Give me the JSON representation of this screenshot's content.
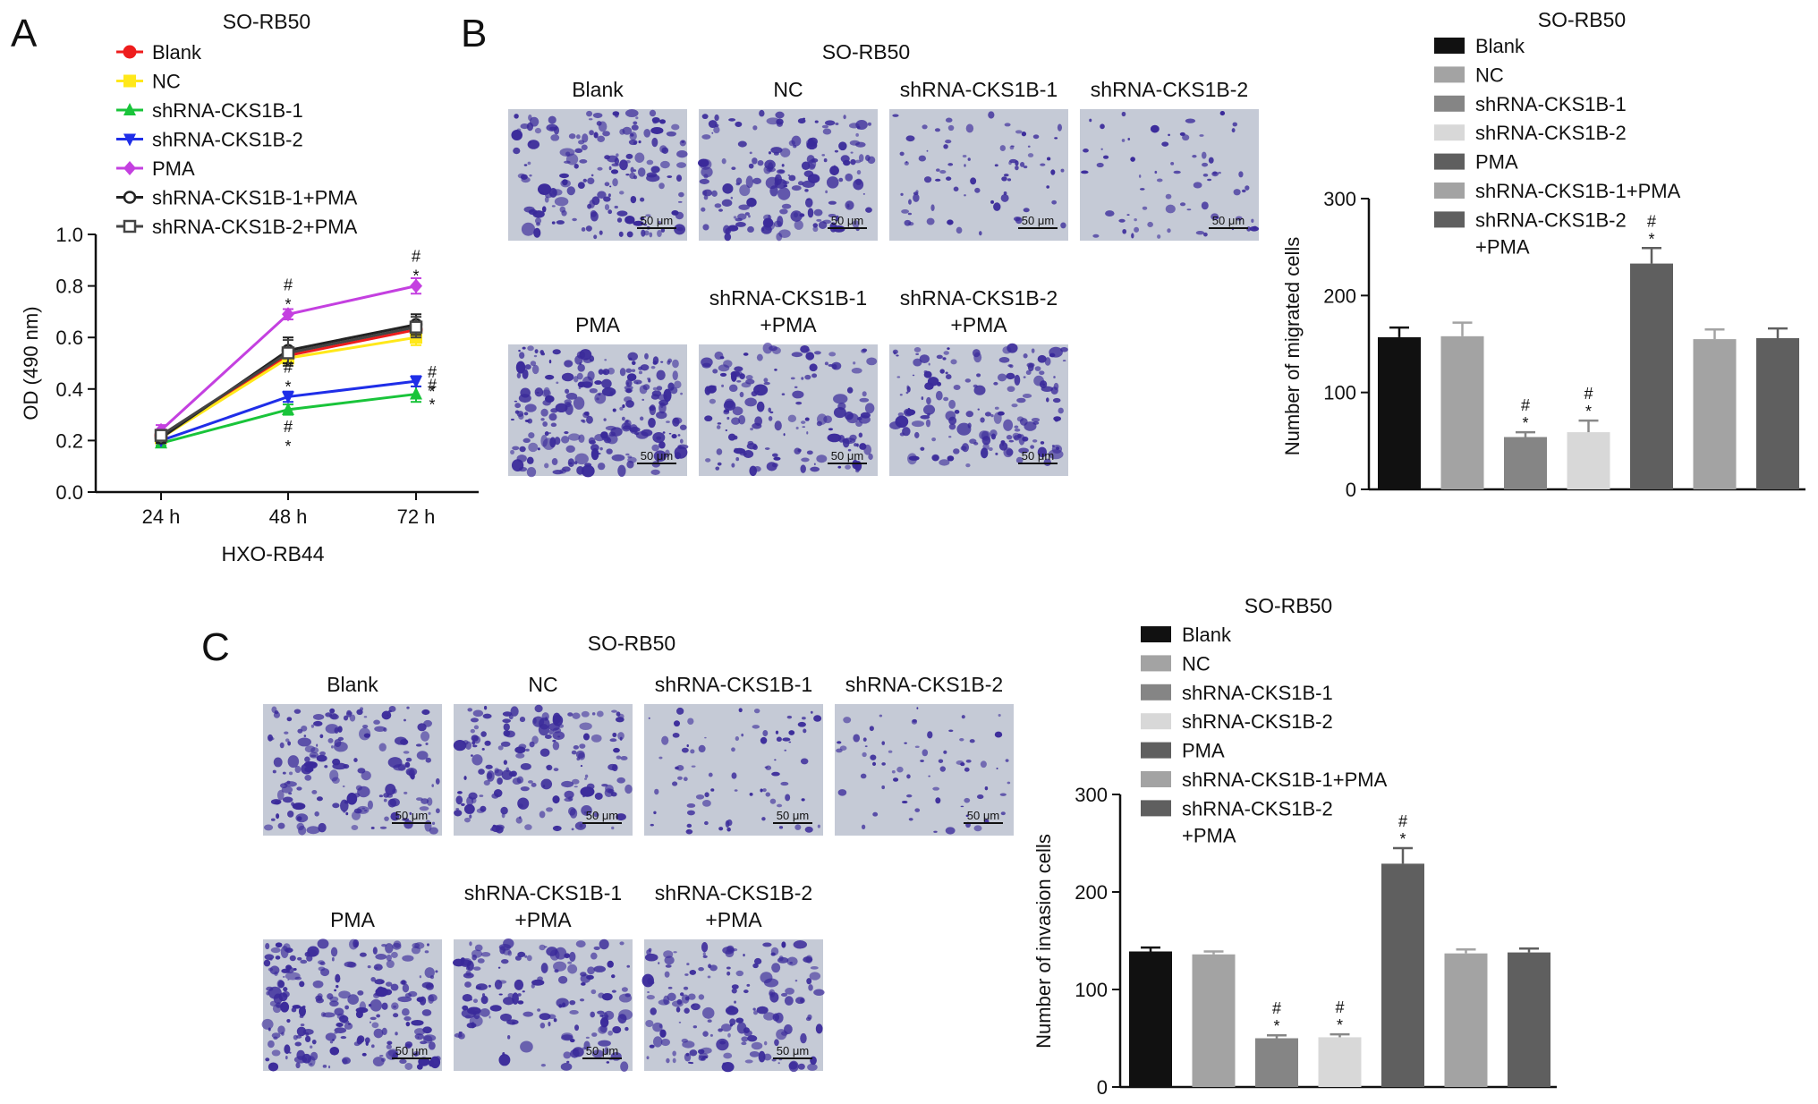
{
  "panels": {
    "A": {
      "letter": "A",
      "cell_line_top": "SO-RB50",
      "cell_line_bottom": "HXO-RB44"
    },
    "B": {
      "letter": "B",
      "images_title": "SO-RB50",
      "image_labels": [
        [
          "Blank"
        ],
        [
          "NC"
        ],
        [
          "shRNA-CKS1B-1"
        ],
        [
          "shRNA-CKS1B-2"
        ],
        [
          "PMA"
        ],
        [
          "shRNA-CKS1B-1",
          "+PMA"
        ],
        [
          "shRNA-CKS1B-2",
          "+PMA"
        ]
      ],
      "scale_bar": "50 μm"
    },
    "C": {
      "letter": "C",
      "images_title": "SO-RB50",
      "image_labels": [
        [
          "Blank"
        ],
        [
          "NC"
        ],
        [
          "shRNA-CKS1B-1"
        ],
        [
          "shRNA-CKS1B-2"
        ],
        [
          "PMA"
        ],
        [
          "shRNA-CKS1B-1",
          "+PMA"
        ],
        [
          "shRNA-CKS1B-2",
          "+PMA"
        ]
      ],
      "scale_bar": "50 μm"
    }
  },
  "colors": {
    "line": [
      "#ee1c1c",
      "#ffe81a",
      "#19c43a",
      "#1f2ee8",
      "#c440e0",
      "#222222",
      "#444444"
    ],
    "bar": [
      "#111111",
      "#a3a3a3",
      "#858585",
      "#d8d8d8",
      "#5f5f5f",
      "#a3a3a3",
      "#5f5f5f"
    ],
    "stain_bg": "#c5cad6",
    "stain_cell": "#3a2a9a"
  },
  "chart_data": [
    {
      "type": "line",
      "title": "SO-RB50",
      "xlabel": "HXO-RB44",
      "ylabel": "OD (490 nm)",
      "ylim": [
        0,
        1.0
      ],
      "yticks": [
        "0.0",
        "0.2",
        "0.4",
        "0.6",
        "0.8",
        "1.0"
      ],
      "categories": [
        "24 h",
        "48 h",
        "72 h"
      ],
      "legend": "top-left",
      "series": [
        {
          "name": "Blank",
          "marker": "circle-filled",
          "values": [
            0.22,
            0.53,
            0.63
          ],
          "errors": [
            0.02,
            0.03,
            0.03
          ]
        },
        {
          "name": "NC",
          "marker": "square-filled",
          "values": [
            0.21,
            0.52,
            0.6
          ],
          "errors": [
            0.02,
            0.03,
            0.03
          ]
        },
        {
          "name": "shRNA-CKS1B-1",
          "marker": "triangle-up",
          "values": [
            0.19,
            0.32,
            0.38
          ],
          "errors": [
            0.01,
            0.02,
            0.03
          ]
        },
        {
          "name": "shRNA-CKS1B-2",
          "marker": "triangle-down",
          "values": [
            0.2,
            0.37,
            0.43
          ],
          "errors": [
            0.01,
            0.02,
            0.02
          ]
        },
        {
          "name": "PMA",
          "marker": "diamond",
          "values": [
            0.24,
            0.69,
            0.8
          ],
          "errors": [
            0.02,
            0.02,
            0.03
          ]
        },
        {
          "name": "shRNA-CKS1B-1+PMA",
          "marker": "circle-open",
          "values": [
            0.21,
            0.55,
            0.65
          ],
          "errors": [
            0.02,
            0.05,
            0.04
          ]
        },
        {
          "name": "shRNA-CKS1B-2+PMA",
          "marker": "square-open",
          "values": [
            0.22,
            0.54,
            0.64
          ],
          "errors": [
            0.02,
            0.05,
            0.04
          ]
        }
      ],
      "annotations": [
        {
          "category": "48 h",
          "y": 0.69,
          "text": [
            "#",
            "*"
          ]
        },
        {
          "category": "48 h",
          "y": 0.37,
          "text": [
            "#",
            "*"
          ]
        },
        {
          "category": "48 h",
          "y": 0.32,
          "text": [
            "#",
            "*"
          ],
          "side": "below"
        },
        {
          "category": "72 h",
          "y": 0.8,
          "text": [
            "#",
            "*"
          ]
        },
        {
          "category": "72 h",
          "y": 0.43,
          "text": [
            "#",
            "*"
          ],
          "side": "right"
        },
        {
          "category": "72 h",
          "y": 0.38,
          "text": [
            "#",
            "*"
          ],
          "side": "right"
        }
      ]
    },
    {
      "type": "bar",
      "title": "SO-RB50",
      "ylabel": "Number of migrated cells",
      "ylim": [
        0,
        300
      ],
      "yticks": [
        "0",
        "100",
        "200",
        "300"
      ],
      "legend": "top",
      "categories": [
        "Blank",
        "NC",
        "shRNA-CKS1B-1",
        "shRNA-CKS1B-2",
        "PMA",
        "shRNA-CKS1B-1+PMA",
        "shRNA-CKS1B-2\n+PMA"
      ],
      "values": [
        157,
        158,
        54,
        59,
        233,
        155,
        156
      ],
      "errors": [
        10,
        14,
        5,
        12,
        16,
        10,
        10
      ],
      "annotations": [
        {
          "index": 2,
          "text": [
            "#",
            "*"
          ]
        },
        {
          "index": 3,
          "text": [
            "#",
            "*"
          ]
        },
        {
          "index": 4,
          "text": [
            "#",
            "*"
          ]
        }
      ]
    },
    {
      "type": "bar",
      "title": "SO-RB50",
      "ylabel": "Number of invasion cells",
      "ylim": [
        0,
        300
      ],
      "yticks": [
        "0",
        "100",
        "200",
        "300"
      ],
      "legend": "top",
      "categories": [
        "Blank",
        "NC",
        "shRNA-CKS1B-1",
        "shRNA-CKS1B-2",
        "PMA",
        "shRNA-CKS1B-1+PMA",
        "shRNA-CKS1B-2\n+PMA"
      ],
      "values": [
        139,
        136,
        50,
        51,
        229,
        137,
        138
      ],
      "errors": [
        4,
        3,
        3,
        3,
        16,
        4,
        4
      ],
      "annotations": [
        {
          "index": 2,
          "text": [
            "#",
            "*"
          ]
        },
        {
          "index": 3,
          "text": [
            "#",
            "*"
          ]
        },
        {
          "index": 4,
          "text": [
            "#",
            "*"
          ]
        }
      ]
    }
  ]
}
